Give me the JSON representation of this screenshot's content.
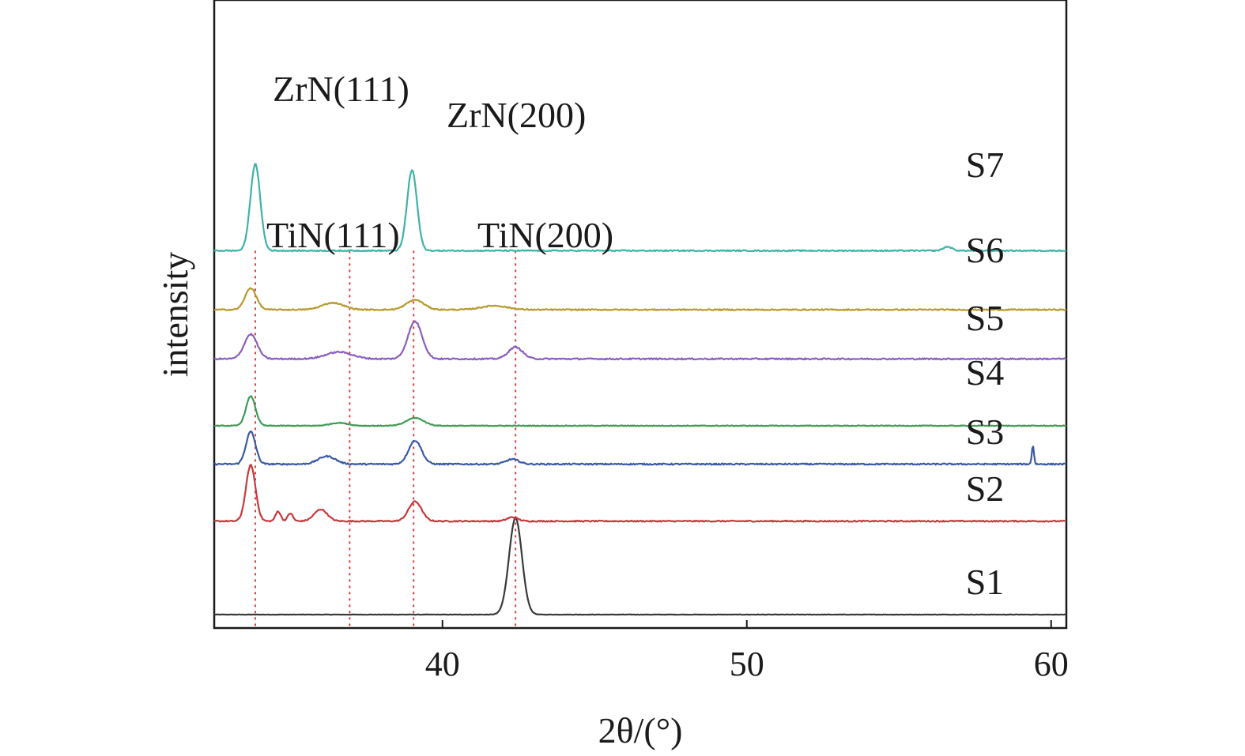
{
  "chart_data": {
    "type": "line",
    "xlabel": "2θ/(°)",
    "ylabel": "intensity",
    "xlim": [
      32.5,
      60.5
    ],
    "x_ticks": [
      40,
      50,
      60
    ],
    "y_ticks": [],
    "grid": false,
    "legend": "none",
    "series": [
      {
        "name": "S1",
        "color": "#3a3a3a",
        "baseline": 0.0,
        "noise": 0.002,
        "peaks": [
          {
            "x": 42.4,
            "h": 0.98,
            "w": 0.3
          }
        ]
      },
      {
        "name": "S2",
        "color": "#c8383c",
        "baseline": 0.95,
        "noise": 0.006,
        "peaks": [
          {
            "x": 33.7,
            "h": 0.57,
            "w": 0.22
          },
          {
            "x": 34.6,
            "h": 0.1,
            "w": 0.12
          },
          {
            "x": 35.0,
            "h": 0.08,
            "w": 0.12
          },
          {
            "x": 36.0,
            "h": 0.12,
            "w": 0.3
          },
          {
            "x": 39.1,
            "h": 0.2,
            "w": 0.3
          },
          {
            "x": 42.3,
            "h": 0.04,
            "w": 0.25
          }
        ]
      },
      {
        "name": "S3",
        "color": "#3b5aa3",
        "baseline": 1.53,
        "noise": 0.007,
        "peaks": [
          {
            "x": 33.7,
            "h": 0.33,
            "w": 0.22
          },
          {
            "x": 36.2,
            "h": 0.08,
            "w": 0.4
          },
          {
            "x": 39.1,
            "h": 0.24,
            "w": 0.3
          },
          {
            "x": 42.3,
            "h": 0.05,
            "w": 0.3
          },
          {
            "x": 59.4,
            "h": 0.19,
            "w": 0.05
          }
        ]
      },
      {
        "name": "S4",
        "color": "#3e9b55",
        "baseline": 1.92,
        "noise": 0.004,
        "peaks": [
          {
            "x": 33.7,
            "h": 0.3,
            "w": 0.22
          },
          {
            "x": 36.6,
            "h": 0.03,
            "w": 0.4
          },
          {
            "x": 39.1,
            "h": 0.08,
            "w": 0.4
          }
        ]
      },
      {
        "name": "S5",
        "color": "#8b5fbf",
        "baseline": 2.6,
        "noise": 0.007,
        "peaks": [
          {
            "x": 33.7,
            "h": 0.25,
            "w": 0.3
          },
          {
            "x": 36.6,
            "h": 0.07,
            "w": 0.6
          },
          {
            "x": 39.1,
            "h": 0.38,
            "w": 0.33
          },
          {
            "x": 42.4,
            "h": 0.12,
            "w": 0.33
          }
        ]
      },
      {
        "name": "S6",
        "color": "#b79a30",
        "baseline": 3.1,
        "noise": 0.006,
        "peaks": [
          {
            "x": 33.7,
            "h": 0.22,
            "w": 0.26
          },
          {
            "x": 36.4,
            "h": 0.07,
            "w": 0.5
          },
          {
            "x": 39.1,
            "h": 0.1,
            "w": 0.4
          },
          {
            "x": 41.7,
            "h": 0.04,
            "w": 0.6
          }
        ]
      },
      {
        "name": "S7",
        "color": "#3fb2a8",
        "baseline": 3.7,
        "noise": 0.006,
        "peaks": [
          {
            "x": 33.85,
            "h": 0.88,
            "w": 0.23
          },
          {
            "x": 39.0,
            "h": 0.82,
            "w": 0.23
          },
          {
            "x": 56.6,
            "h": 0.04,
            "w": 0.2
          }
        ]
      }
    ],
    "reference_lines": [
      {
        "x": 33.85,
        "color": "#d9403a"
      },
      {
        "x": 36.95,
        "color": "#d9403a"
      },
      {
        "x": 39.05,
        "color": "#d9403a"
      },
      {
        "x": 42.4,
        "color": "#d9403a"
      }
    ],
    "annotations": [
      {
        "text": "ZrN(111)"
      },
      {
        "text": "ZrN(200)"
      },
      {
        "text": "TiN(111)"
      },
      {
        "text": "TiN(200)"
      }
    ]
  }
}
